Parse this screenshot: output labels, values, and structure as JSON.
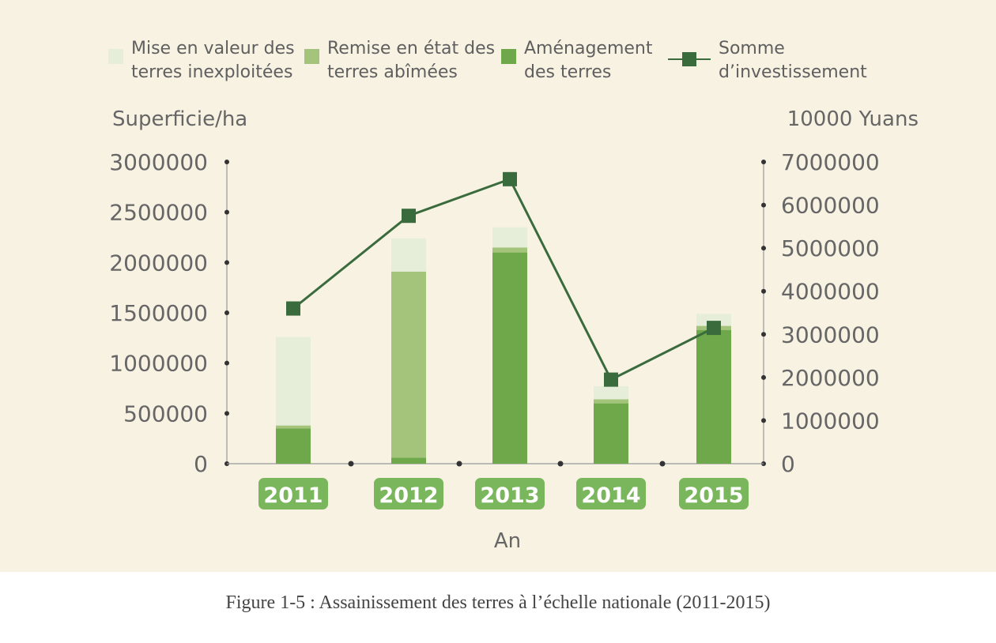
{
  "caption": "Figure 1-5 : Assainissement des terres à l’échelle nationale (2011-2015)",
  "colors": {
    "background": "#f8f2e3",
    "mise_en_valeur": "#e6eed9",
    "remise_en_etat": "#a3c47a",
    "amenagement": "#6fa84a",
    "investment_line": "#3a6b3d",
    "axis": "#999999",
    "year_badge": "#7ab65b"
  },
  "chart_data": {
    "type": "bar",
    "stacked": true,
    "categories": [
      "2011",
      "2012",
      "2013",
      "2014",
      "2015"
    ],
    "series": [
      {
        "name": "Aménagement des terres",
        "key": "amenagement",
        "values": [
          350000,
          60000,
          2100000,
          600000,
          1330000
        ]
      },
      {
        "name": "Remise en état des terres abîmées",
        "key": "remise_en_etat",
        "values": [
          30000,
          1850000,
          50000,
          40000,
          40000
        ]
      },
      {
        "name": "Mise en valeur des terres inexploitées",
        "key": "mise_en_valeur",
        "values": [
          880000,
          330000,
          200000,
          130000,
          120000
        ]
      }
    ],
    "line_series": {
      "name": "Somme d’investissement",
      "axis": "right",
      "values": [
        3600000,
        5750000,
        6600000,
        1950000,
        3150000
      ]
    },
    "legend": [
      {
        "label_line1": "Mise en valeur des",
        "label_line2": "terres inexploitées",
        "key": "mise_en_valeur",
        "kind": "box"
      },
      {
        "label_line1": "Remise en état des",
        "label_line2": "terres abîmées",
        "key": "remise_en_etat",
        "kind": "box"
      },
      {
        "label_line1": "Aménagement",
        "label_line2": "des terres",
        "key": "amenagement",
        "kind": "box"
      },
      {
        "label_line1": "Somme",
        "label_line2": "d’investissement",
        "key": "investment_line",
        "kind": "line"
      }
    ],
    "legend_position": "top",
    "y_left": {
      "label": "Superficie/ha",
      "range": [
        0,
        3000000
      ],
      "ticks": [
        "0",
        "500000",
        "1000000",
        "1500000",
        "2000000",
        "2500000",
        "3000000"
      ]
    },
    "y_right": {
      "label": "10000 Yuans",
      "range": [
        0,
        7000000
      ],
      "ticks": [
        "0",
        "1000000",
        "2000000",
        "3000000",
        "4000000",
        "5000000",
        "6000000",
        "7000000"
      ]
    },
    "xlabel": "An",
    "grid": false
  }
}
